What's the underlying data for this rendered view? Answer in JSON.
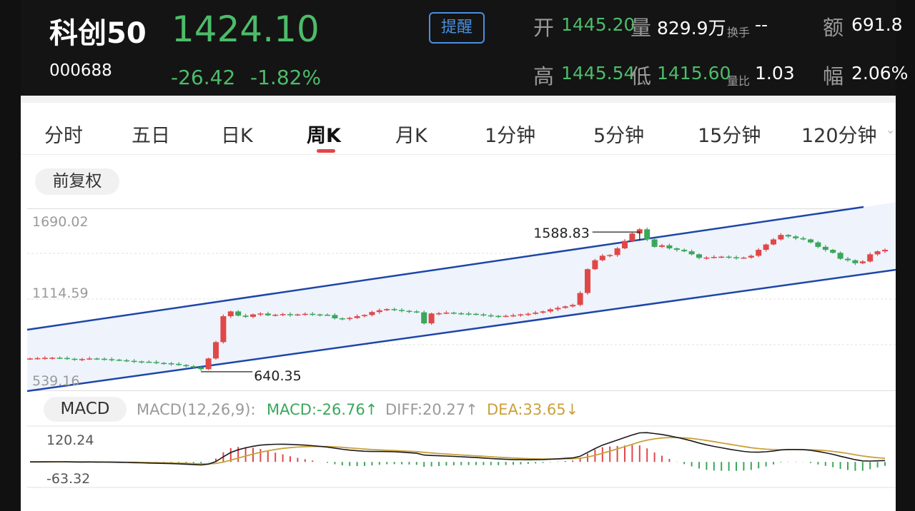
{
  "header": {
    "name": "科创50",
    "code": "000688",
    "price": "1424.10",
    "change": "-26.42",
    "change_pct": "-1.82%",
    "alert_button": "提醒",
    "open_label": "开",
    "open_value": "1445.20",
    "volume_label": "量",
    "volume_value": "829.9万",
    "turnover_label": "换手",
    "turnover_value": "--",
    "amount_label": "额",
    "amount_value": "691.8",
    "high_label": "高",
    "high_value": "1445.54",
    "low_label": "低",
    "low_value": "1415.60",
    "volratio_label": "量比",
    "volratio_value": "1.03",
    "amplitude_label": "幅",
    "amplitude_value": "2.06%"
  },
  "tabs": [
    "分时",
    "五日",
    "日K",
    "周K",
    "月K",
    "1分钟",
    "5分钟",
    "15分钟",
    "120分钟"
  ],
  "active_tab": "周K",
  "adjust_button": "前复权",
  "kline": {
    "price_labels": {
      "top": "1690.02",
      "mid": "1114.59",
      "bottom": "539.16"
    },
    "max_annotation": "1588.83",
    "min_annotation": "640.35"
  },
  "macd": {
    "tab_label": "MACD",
    "params": "MACD(12,26,9):",
    "macd_value": "MACD:-26.76↑",
    "diff_value": "DIFF:20.27↑",
    "dea_value": "DEA:33.65↓",
    "axis_top": "120.24",
    "axis_bottom": "-63.32"
  },
  "colors": {
    "up": "#e04848",
    "down": "#3aa75a",
    "price_green": "#4cbc6a",
    "channel": "#1e46a8",
    "channel_fill": "#eef3fc",
    "dea_line": "#c9a13c",
    "diff_line": "#1a1a1a"
  },
  "chart_data": {
    "type": "candlestick",
    "price_axis": {
      "top": 1690.02,
      "bottom": 539.16
    },
    "max_close_point": 1588.83,
    "min_point": 640.35,
    "closes": [
      720,
      722,
      724,
      725,
      723,
      718,
      714,
      716,
      720,
      718,
      715,
      712,
      708,
      704,
      700,
      698,
      696,
      690,
      688,
      684,
      676,
      668,
      660,
      648,
      720,
      830,
      1004,
      1036,
      1008,
      1000,
      1016,
      1022,
      1010,
      1014,
      1018,
      1012,
      1016,
      1020,
      1016,
      1014,
      1012,
      990,
      986,
      992,
      1004,
      1012,
      1032,
      1044,
      1052,
      1046,
      1040,
      1036,
      1030,
      956,
      1022,
      1024,
      1028,
      1024,
      1022,
      1020,
      1016,
      1010,
      1006,
      1004,
      1006,
      1010,
      1016,
      1020,
      1028,
      1036,
      1050,
      1060,
      1070,
      1080,
      1160,
      1320,
      1380,
      1410,
      1415,
      1460,
      1510,
      1560,
      1588,
      1520,
      1470,
      1480,
      1460,
      1450,
      1440,
      1420,
      1396,
      1398,
      1402,
      1404,
      1400,
      1396,
      1398,
      1410,
      1450,
      1486,
      1520,
      1550,
      1540,
      1528,
      1520,
      1500,
      1470,
      1450,
      1430,
      1390,
      1380,
      1360,
      1372,
      1420,
      1440,
      1450
    ],
    "macd": {
      "axis_top": 120.24,
      "axis_bottom": -63.32,
      "diff_last": 20.27,
      "dea_last": 33.65,
      "macd_last": -26.76
    }
  }
}
